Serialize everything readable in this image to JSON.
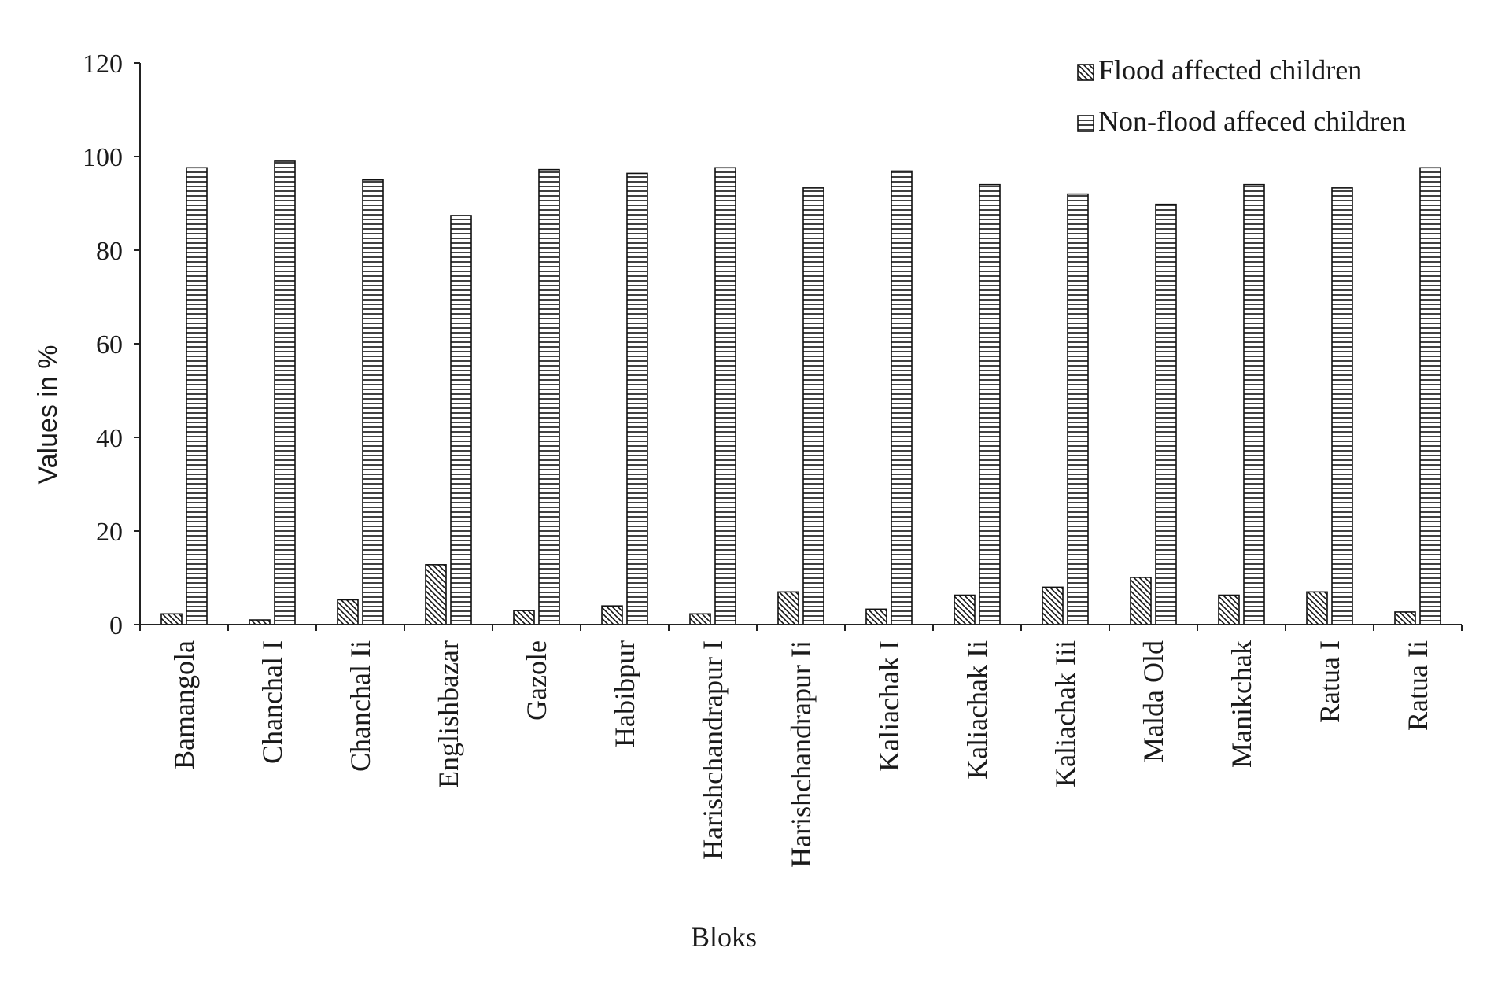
{
  "chart_data": {
    "type": "bar",
    "title": "",
    "xlabel": "Bloks",
    "ylabel": "Values in %",
    "ylim": [
      0,
      120
    ],
    "yticks": [
      "0",
      "20",
      "40",
      "60",
      "80",
      "100",
      "120"
    ],
    "grid": false,
    "legend_position": "top-right",
    "categories": [
      "Bamangola",
      "Chanchal I",
      "Chanchal Ii",
      "Englishbazar",
      "Gazole",
      "Habibpur",
      "Harishchandrapur I",
      "Harishchandrapur Ii",
      "Kaliachak I",
      "Kaliachak Ii",
      "Kaliachak Iii",
      "Malda Old",
      "Manikchak",
      "Ratua I",
      "Ratua Ii"
    ],
    "series": [
      {
        "name": "Flood affected children",
        "pattern": "diagonal",
        "values": [
          2.3,
          1.0,
          5.3,
          12.8,
          3.0,
          4.0,
          2.3,
          7.0,
          3.3,
          6.3,
          8.0,
          10.1,
          6.3,
          7.0,
          2.7
        ]
      },
      {
        "name": "Non-flood affeced children",
        "pattern": "horizontal",
        "values": [
          97.6,
          99.0,
          95.0,
          87.4,
          97.2,
          96.4,
          97.6,
          93.3,
          96.9,
          94.0,
          92.0,
          89.8,
          94.0,
          93.3,
          97.6
        ]
      }
    ]
  }
}
